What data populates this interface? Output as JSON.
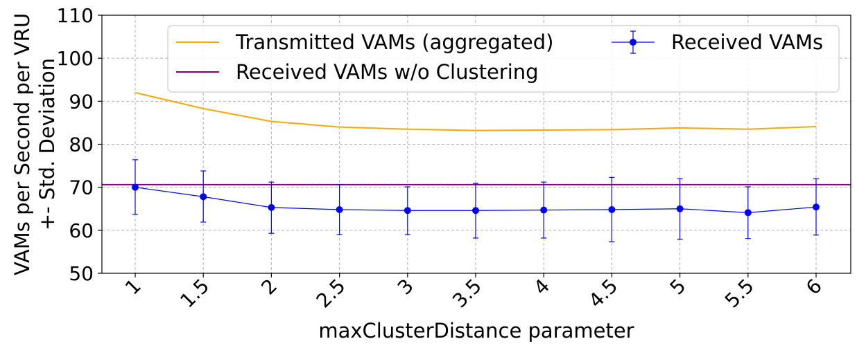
{
  "chart_data": {
    "type": "line",
    "title": "",
    "xlabel": "maxClusterDistance parameter",
    "ylabel_lines": [
      "VAMs per Second per VRU",
      "+- Std. Deviation"
    ],
    "categories": [
      "1",
      "1.5",
      "2",
      "2.5",
      "3",
      "3.5",
      "4",
      "4.5",
      "5",
      "5.5",
      "6"
    ],
    "ylim": [
      50,
      110
    ],
    "yticks": [
      50,
      60,
      70,
      80,
      90,
      100,
      110
    ],
    "grid": true,
    "legend_position": "top-right",
    "series": [
      {
        "name": "Transmitted VAMs (aggregated)",
        "kind": "line",
        "color": "#ffa500",
        "values": [
          92.0,
          88.3,
          85.3,
          84.0,
          83.5,
          83.2,
          83.3,
          83.4,
          83.8,
          83.5,
          84.1
        ]
      },
      {
        "name": "Received VAMs w/o Clustering",
        "kind": "hline",
        "color": "#800080",
        "value": 70.6
      },
      {
        "name": "Received VAMs",
        "kind": "errorbar",
        "color": "#0000ff",
        "values": [
          70.0,
          67.8,
          65.3,
          64.8,
          64.6,
          64.6,
          64.7,
          64.8,
          65.0,
          64.1,
          65.4
        ],
        "lower": [
          63.7,
          61.9,
          59.3,
          59.0,
          59.0,
          58.2,
          58.2,
          57.3,
          57.9,
          58.1,
          58.9
        ],
        "upper": [
          76.4,
          73.8,
          71.2,
          70.6,
          70.1,
          70.9,
          71.2,
          72.3,
          72.0,
          70.1,
          72.0
        ]
      }
    ]
  }
}
